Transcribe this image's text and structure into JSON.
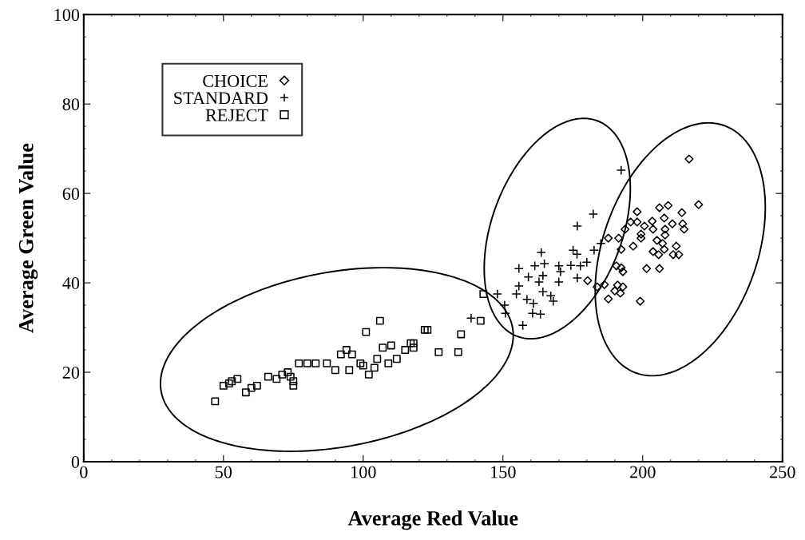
{
  "chart_data": {
    "type": "scatter",
    "xlabel": "Average Red Value",
    "ylabel": "Average Green Value",
    "xlim": [
      0,
      250
    ],
    "xticks": [
      0,
      50,
      100,
      150,
      200,
      250
    ],
    "ylim": [
      0,
      100
    ],
    "yticks": [
      0,
      20,
      40,
      60,
      80,
      100
    ],
    "grid": false,
    "legend": "top left",
    "series": [
      {
        "name": "CHOICE",
        "color": "#000000",
        "marker": "diamond",
        "x": [
          216.6,
          220,
          209.1,
          206,
          198,
          214,
          195.7,
          198,
          200.6,
          203.4,
          207.7,
          210.6,
          214.3,
          214.8,
          203.7,
          193.7,
          208,
          199.4,
          208,
          199.4,
          187.7,
          191.4,
          205.1,
          207.1,
          192.3,
          196.6,
          212,
          207.7,
          203.7,
          205.7,
          210.9,
          212.9,
          190.6,
          192.3,
          192.9,
          201.4,
          206,
          183.7,
          186.3,
          191,
          192.9,
          190,
          192,
          187.7,
          199.1,
          180.3
        ],
        "values": [
          67.7,
          57.5,
          57.3,
          56.8,
          55.9,
          55.7,
          53.6,
          53.6,
          52.7,
          53.8,
          54.5,
          53.2,
          53.2,
          52,
          52,
          52,
          52,
          50.9,
          50.7,
          50,
          50,
          50,
          49.5,
          48.8,
          47.5,
          48.2,
          48.2,
          47.5,
          47,
          46.3,
          46.3,
          46.3,
          43.8,
          43.4,
          42.5,
          43.2,
          43.2,
          39.1,
          39.6,
          39.5,
          39.1,
          38.2,
          37.7,
          36.4,
          35.9,
          40.5
        ]
      },
      {
        "name": "STANDARD",
        "color": "#000000",
        "marker": "cross",
        "x": [
          192.3,
          182.3,
          176.6,
          182.6,
          175.1,
          176.5,
          163.7,
          180,
          155.7,
          161.4,
          164.8,
          170,
          174.3,
          177.7,
          159.1,
          164.3,
          170.6,
          176.6,
          155.7,
          162.9,
          170,
          154.8,
          164.3,
          167.1,
          158.6,
          160.9,
          148,
          150.6,
          150.9,
          157.1,
          160.6,
          163.4,
          168,
          138.6,
          185
        ],
        "values": [
          65.2,
          55.4,
          52.7,
          47.3,
          47.3,
          46.4,
          46.8,
          44.6,
          43.2,
          43.8,
          44.3,
          43.8,
          43.9,
          43.8,
          41.3,
          41.6,
          42.5,
          41.1,
          39.3,
          40.2,
          40.2,
          37.5,
          38,
          37.1,
          36.3,
          35.4,
          37.5,
          35,
          33.2,
          30.5,
          33.2,
          33,
          35.9,
          32.1,
          48.8
        ]
      },
      {
        "name": "REJECT",
        "color": "#000000",
        "marker": "square",
        "x": [
          47,
          50,
          52,
          53,
          55,
          58,
          60,
          62,
          66,
          69,
          71,
          73,
          74,
          75,
          75,
          77,
          80,
          83,
          87,
          90,
          92,
          94,
          95,
          96,
          99,
          100,
          101,
          102,
          104,
          105,
          106,
          107,
          109,
          110,
          112,
          115,
          117,
          118,
          118,
          122,
          123,
          127,
          134,
          135,
          142,
          143
        ],
        "values": [
          13.5,
          17,
          17.5,
          18,
          18.5,
          15.5,
          16.5,
          17,
          19,
          18.5,
          19.5,
          20,
          19,
          18,
          17,
          22,
          22,
          22,
          22,
          20.5,
          24,
          25,
          20.5,
          24,
          22,
          21.5,
          29,
          19.5,
          21,
          23,
          31.5,
          25.5,
          22,
          26,
          23,
          25,
          26.5,
          26.5,
          25.5,
          29.5,
          29.5,
          24.5,
          24.5,
          28.5,
          31.5,
          37.5
        ]
      }
    ]
  }
}
